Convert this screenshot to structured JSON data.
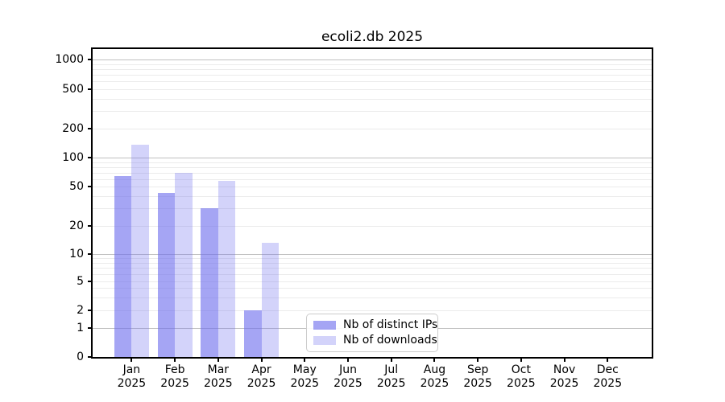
{
  "chart_data": {
    "type": "bar",
    "title": "ecoli2.db 2025",
    "xlabel": "",
    "ylabel": "",
    "months": [
      "Jan",
      "Feb",
      "Mar",
      "Apr",
      "May",
      "Jun",
      "Jul",
      "Aug",
      "Sep",
      "Oct",
      "Nov",
      "Dec"
    ],
    "year": "2025",
    "y_scale": "symlog",
    "y_ticks": [
      0,
      1,
      2,
      5,
      10,
      20,
      50,
      100,
      200,
      500,
      1000
    ],
    "ylim": [
      0,
      1300
    ],
    "grid": {
      "major_at": [
        1,
        10,
        100,
        1000
      ],
      "minor": "log-decades-2-to-9"
    },
    "bar_base_hex": "#6e6eee",
    "series": [
      {
        "name": "Nb of distinct IPs",
        "rendered_hex": "#a5a5f4",
        "alpha": 0.62,
        "values": [
          65,
          43,
          30,
          2,
          null,
          null,
          null,
          null,
          null,
          null,
          null,
          null
        ]
      },
      {
        "name": "Nb of downloads",
        "rendered_hex": "#d4d4fa",
        "alpha": 0.3,
        "values": [
          135,
          70,
          57,
          13,
          null,
          null,
          null,
          null,
          null,
          null,
          null,
          null
        ]
      }
    ],
    "legend": {
      "position": "inside-bottom-center",
      "entries": [
        "Nb of distinct IPs",
        "Nb of downloads"
      ]
    }
  }
}
